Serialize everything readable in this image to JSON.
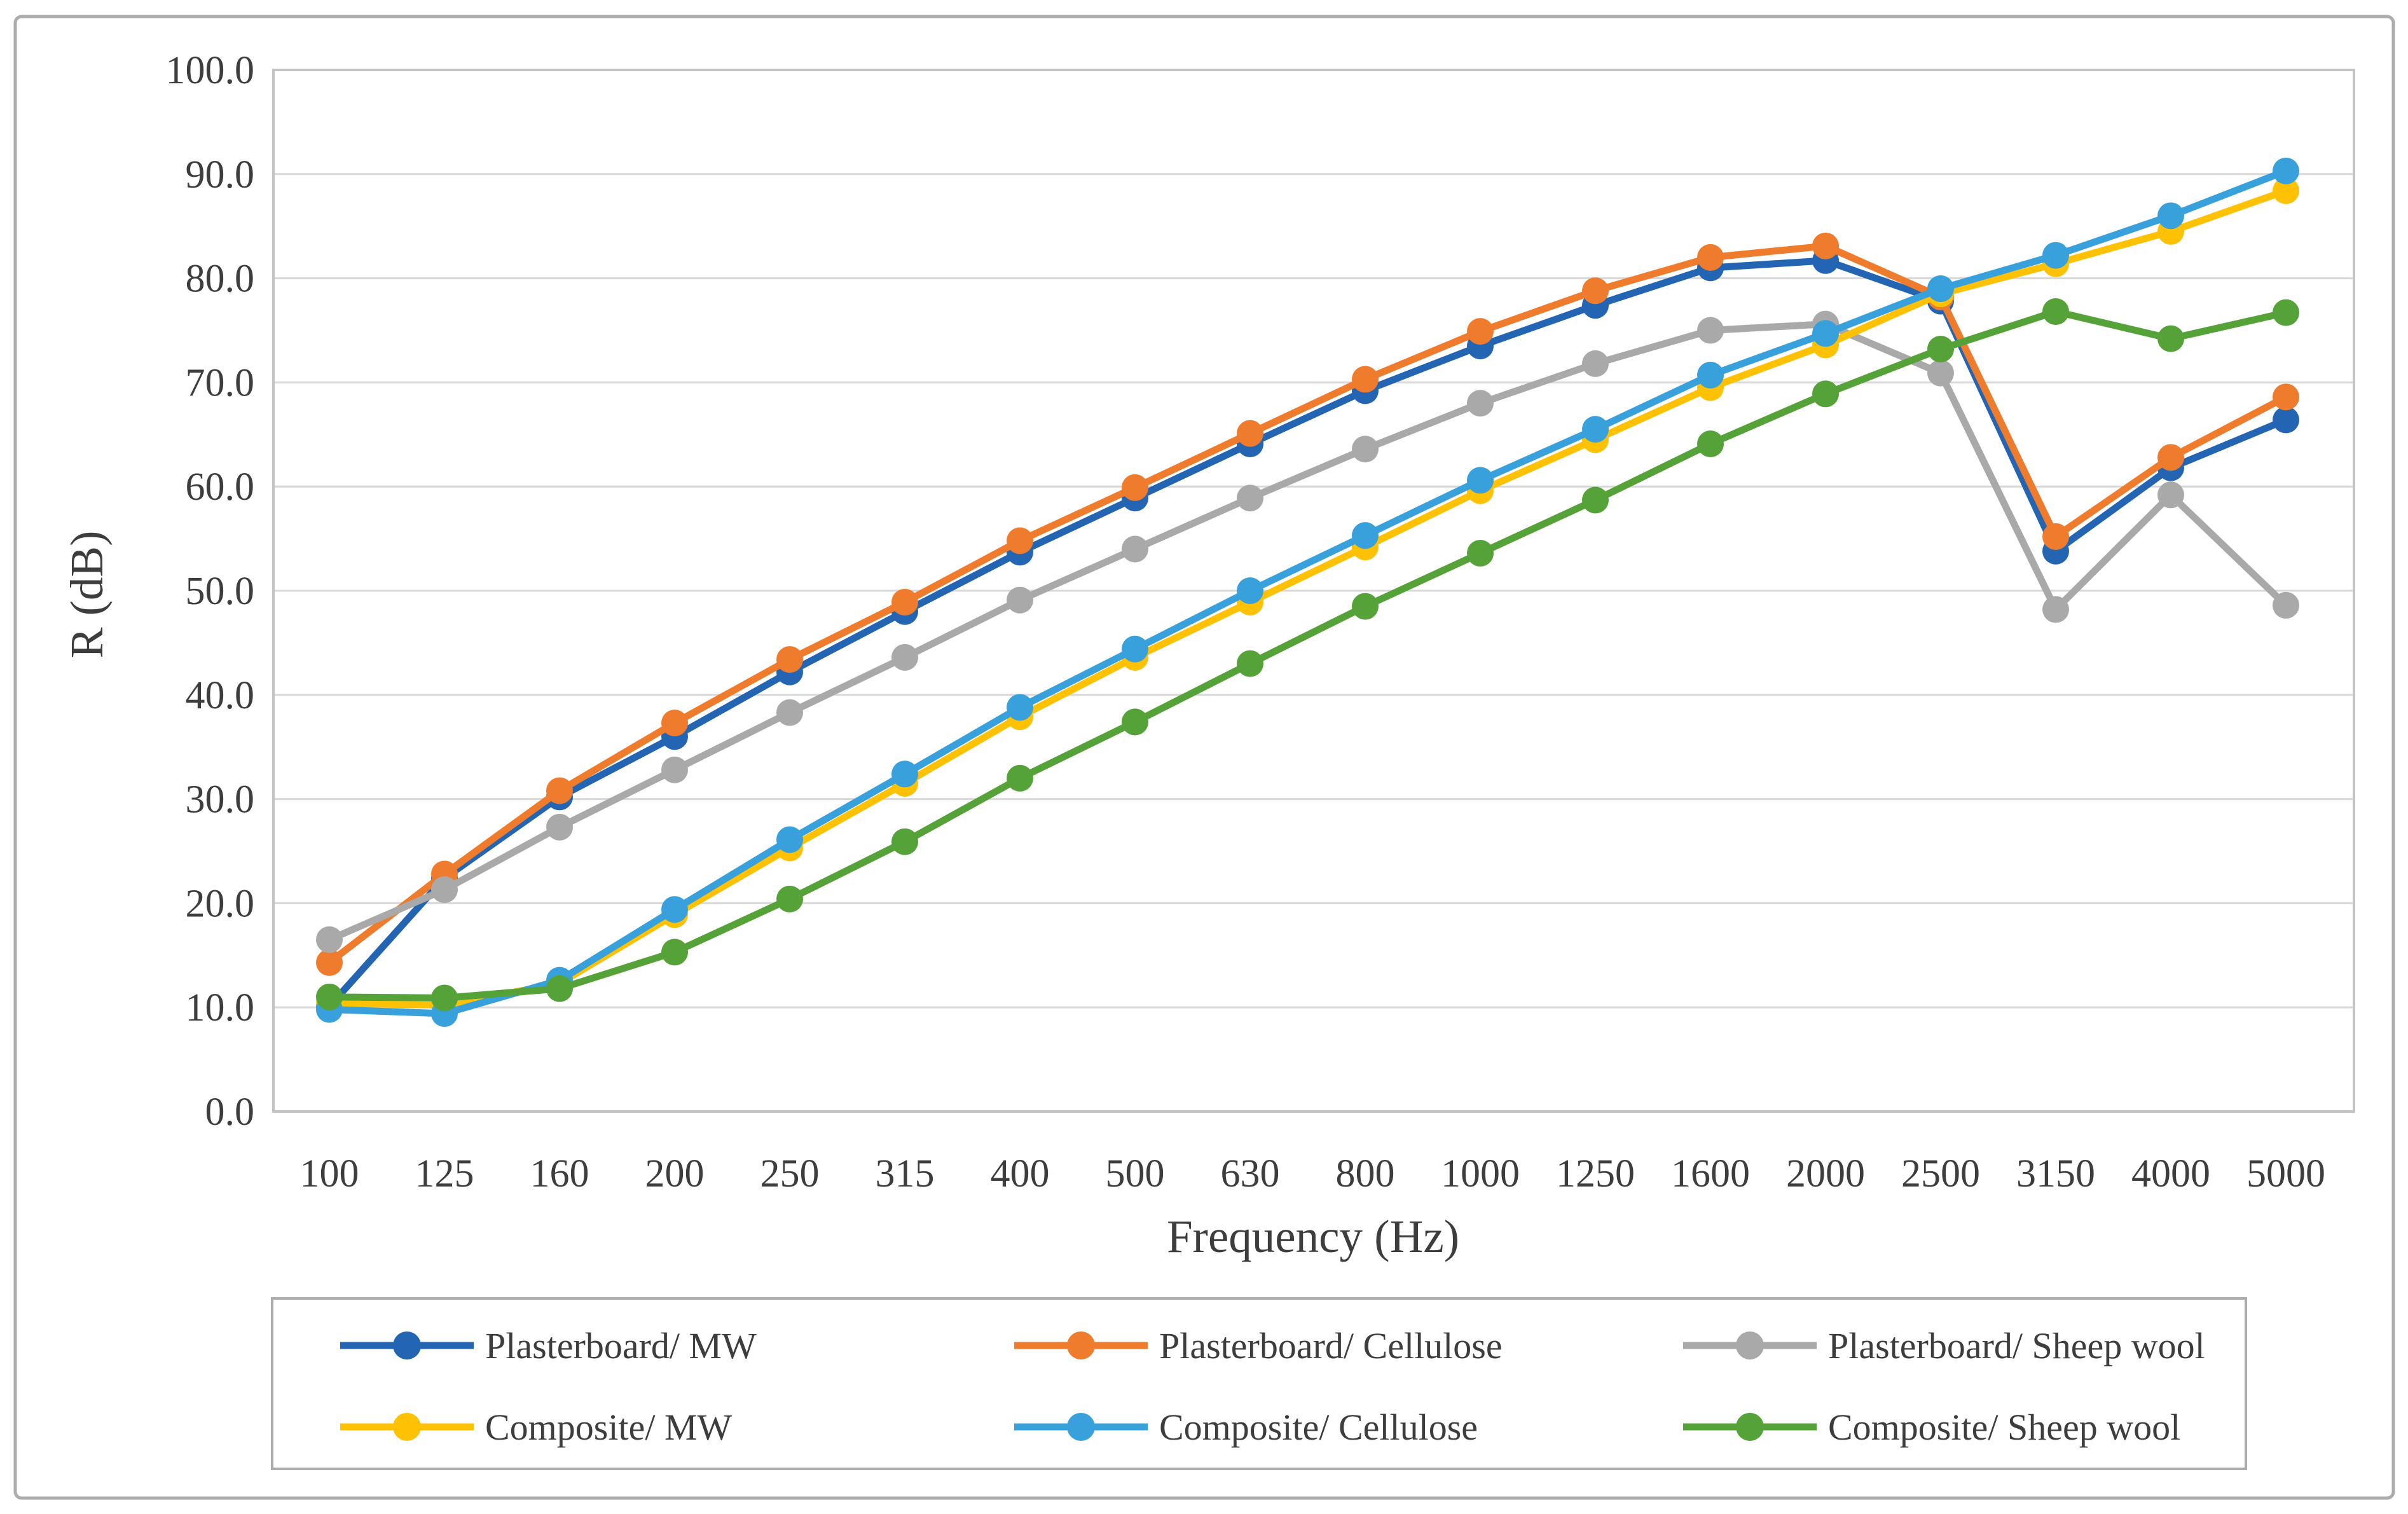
{
  "figure": {
    "background": "#ffffff",
    "outer_border_color": "#acacac",
    "plot_border_color": "#c3c3c3",
    "gridline_color": "#d8d8d8",
    "text_color": "#3d3d3d"
  },
  "chart_data": {
    "type": "line",
    "title": "",
    "xlabel": "Frequency (Hz)",
    "ylabel": "R (dB)",
    "ylim": [
      0,
      100
    ],
    "ytick_step": 10,
    "ytick_labels": [
      "0.0",
      "10.0",
      "20.0",
      "30.0",
      "40.0",
      "50.0",
      "60.0",
      "70.0",
      "80.0",
      "90.0",
      "100.0"
    ],
    "categories": [
      "100",
      "125",
      "160",
      "200",
      "250",
      "315",
      "400",
      "500",
      "630",
      "800",
      "1000",
      "1250",
      "1600",
      "2000",
      "2500",
      "3150",
      "4000",
      "5000"
    ],
    "grid": "horizontal",
    "legend_position": "bottom",
    "marker": "circle",
    "series": [
      {
        "name": "Plasterboard/ MW",
        "color": "#2365b2",
        "values": [
          10.1,
          22.4,
          30.2,
          36.0,
          42.2,
          48.0,
          53.7,
          58.9,
          64.1,
          69.2,
          73.5,
          77.4,
          81.0,
          81.7,
          77.8,
          53.8,
          61.8,
          66.4
        ]
      },
      {
        "name": "Plasterboard/ Cellulose",
        "color": "#ef7b2d",
        "values": [
          14.3,
          22.8,
          30.8,
          37.3,
          43.4,
          48.9,
          54.8,
          59.9,
          65.1,
          70.3,
          74.9,
          78.8,
          82.0,
          83.1,
          78.2,
          55.2,
          62.8,
          68.6
        ]
      },
      {
        "name": "Plasterboard/ Sheep wool",
        "color": "#a9a9a9",
        "values": [
          16.5,
          21.3,
          27.3,
          32.8,
          38.3,
          43.6,
          49.1,
          54.0,
          58.9,
          63.6,
          68.0,
          71.8,
          75.0,
          75.6,
          70.9,
          48.2,
          59.2,
          48.6
        ]
      },
      {
        "name": "Composite/ MW",
        "color": "#fec103",
        "values": [
          10.4,
          10.2,
          12.3,
          18.9,
          25.3,
          31.5,
          37.9,
          43.6,
          48.9,
          54.2,
          59.6,
          64.5,
          69.5,
          73.6,
          78.5,
          81.4,
          84.5,
          88.4
        ]
      },
      {
        "name": "Composite/ Cellulose",
        "color": "#38a0db",
        "values": [
          9.8,
          9.4,
          12.6,
          19.4,
          26.1,
          32.4,
          38.8,
          44.4,
          50.0,
          55.3,
          60.6,
          65.5,
          70.7,
          74.7,
          79.0,
          82.2,
          86.0,
          90.3
        ]
      },
      {
        "name": "Composite/ Sheep wool",
        "color": "#55a338",
        "values": [
          11.0,
          10.9,
          11.8,
          15.3,
          20.4,
          25.9,
          32.0,
          37.4,
          43.0,
          48.5,
          53.6,
          58.7,
          64.1,
          68.9,
          73.2,
          76.8,
          74.2,
          76.7
        ]
      }
    ]
  }
}
